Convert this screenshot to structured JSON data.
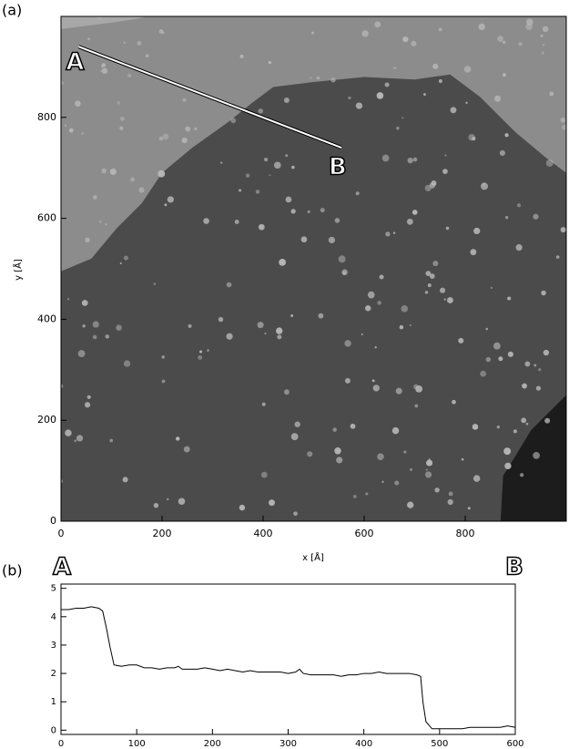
{
  "chart_data": [
    {
      "type": "image",
      "panel_label": "(a)",
      "x_label": "x [Å]",
      "y_label": "y [Å]",
      "xlim": [
        0,
        1000
      ],
      "ylim": [
        0,
        1000
      ],
      "xticks": [
        0,
        200,
        400,
        600,
        800
      ],
      "yticks": [
        0,
        200,
        400,
        600,
        800
      ],
      "annotations": [
        {
          "text": "A",
          "x": 35,
          "y": 940
        },
        {
          "text": "B",
          "x": 555,
          "y": 740
        }
      ]
    },
    {
      "type": "line",
      "panel_label": "(b)",
      "endpoint_labels": [
        "A",
        "B"
      ],
      "xlim": [
        0,
        600
      ],
      "ylim": [
        -0.15,
        5.15
      ],
      "xticks": [
        0,
        100,
        200,
        300,
        400,
        500,
        600
      ],
      "yticks": [
        0,
        1,
        2,
        3,
        4,
        5
      ],
      "color": "#000000",
      "x": [
        0,
        10,
        20,
        30,
        40,
        50,
        55,
        60,
        65,
        70,
        80,
        90,
        100,
        110,
        120,
        130,
        140,
        150,
        155,
        160,
        170,
        180,
        190,
        200,
        210,
        220,
        230,
        240,
        250,
        260,
        270,
        280,
        290,
        300,
        310,
        315,
        320,
        330,
        340,
        350,
        360,
        370,
        380,
        390,
        400,
        410,
        420,
        430,
        440,
        450,
        460,
        470,
        475,
        478,
        482,
        490,
        500,
        510,
        520,
        530,
        540,
        550,
        560,
        570,
        580,
        590,
        600
      ],
      "values": [
        4.25,
        4.25,
        4.3,
        4.3,
        4.35,
        4.3,
        4.2,
        3.6,
        2.9,
        2.3,
        2.25,
        2.3,
        2.3,
        2.2,
        2.2,
        2.15,
        2.2,
        2.2,
        2.25,
        2.15,
        2.15,
        2.15,
        2.2,
        2.15,
        2.1,
        2.15,
        2.1,
        2.05,
        2.1,
        2.05,
        2.05,
        2.05,
        2.05,
        2.0,
        2.05,
        2.15,
        2.0,
        1.95,
        1.95,
        1.95,
        1.95,
        1.9,
        1.95,
        1.95,
        2.0,
        2.0,
        2.05,
        2.0,
        2.0,
        2.0,
        2.0,
        1.95,
        1.9,
        1.0,
        0.3,
        0.05,
        0.05,
        0.05,
        0.05,
        0.05,
        0.1,
        0.1,
        0.1,
        0.1,
        0.1,
        0.15,
        0.1
      ]
    }
  ]
}
